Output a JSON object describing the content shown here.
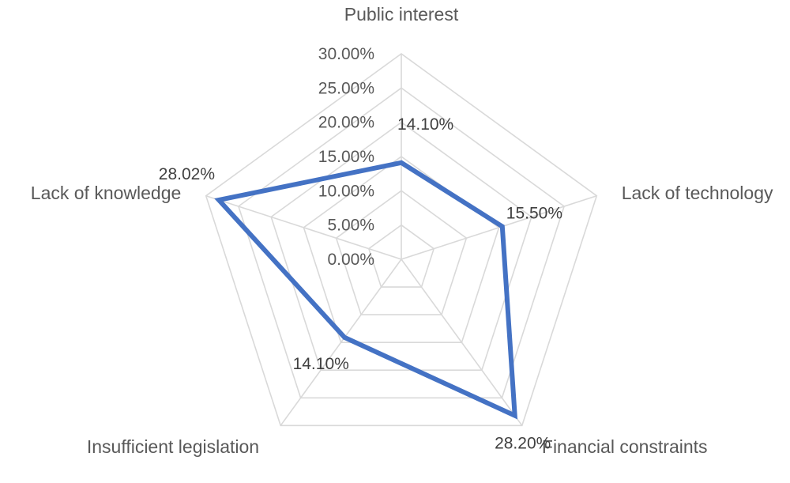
{
  "chart_data": {
    "type": "radar",
    "categories": [
      "Public interest",
      "Lack of technology",
      "Financial constraints",
      "Insufficient legislation",
      "Lack of knowledge"
    ],
    "series": [
      {
        "values": [
          14.1,
          15.5,
          28.2,
          14.1,
          28.02
        ]
      }
    ],
    "data_labels": [
      "14.10%",
      "15.50%",
      "28.20%",
      "14.10%",
      "28.02%"
    ],
    "ticks": [
      "0.00%",
      "5.00%",
      "10.00%",
      "15.00%",
      "20.00%",
      "25.00%",
      "30.00%"
    ],
    "tick_values": [
      0,
      5,
      10,
      15,
      20,
      25,
      30
    ],
    "rlim": [
      0,
      30
    ],
    "grid": true,
    "legend": "none",
    "colors": {
      "series": "#4472c4",
      "grid": "#d9d9d9",
      "text": "#595959"
    }
  }
}
